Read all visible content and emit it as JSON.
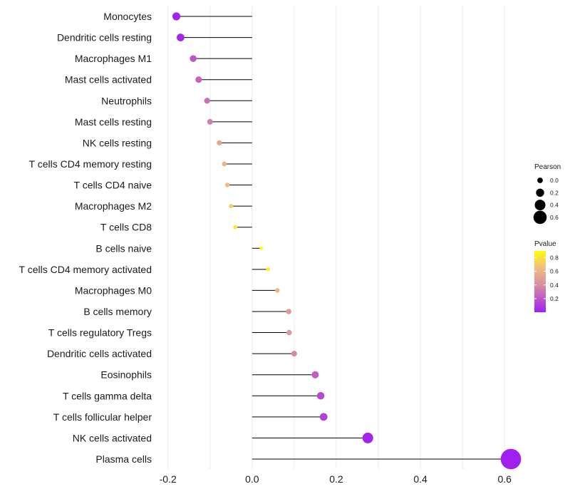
{
  "chart_data": {
    "type": "lollipop",
    "title": "",
    "xlabel": "",
    "ylabel": "",
    "xlim": [
      -0.23,
      0.62
    ],
    "x_ticks": [
      -0.2,
      0.0,
      0.2,
      0.4,
      0.6
    ],
    "x_tick_labels": [
      "-0.2",
      "0.0",
      "0.2",
      "0.4",
      "0.6"
    ],
    "grid": true,
    "categories": [
      "Monocytes",
      "Dendritic cells resting",
      "Macrophages M1",
      "Mast cells activated",
      "Neutrophils",
      "Mast cells resting",
      "NK cells resting",
      "T cells CD4 memory resting",
      "T cells CD4 naive",
      "Macrophages M2",
      "T cells CD8",
      "B cells naive",
      "T cells CD4 memory activated",
      "Macrophages M0",
      "B cells memory",
      "T cells regulatory  Tregs ",
      "Dendritic cells activated",
      "Eosinophils",
      "T cells gamma delta",
      "T cells follicular helper",
      "NK cells activated",
      "Plasma cells"
    ],
    "pearson": [
      -0.18,
      -0.17,
      -0.14,
      -0.127,
      -0.107,
      -0.1,
      -0.078,
      -0.066,
      -0.059,
      -0.05,
      -0.04,
      0.022,
      0.038,
      0.06,
      0.087,
      0.088,
      0.1,
      0.15,
      0.163,
      0.17,
      0.275,
      0.615
    ],
    "pvalue": [
      0.02,
      0.03,
      0.2,
      0.24,
      0.3,
      0.35,
      0.52,
      0.6,
      0.65,
      0.72,
      0.82,
      0.93,
      0.85,
      0.6,
      0.45,
      0.45,
      0.38,
      0.22,
      0.15,
      0.12,
      0.02,
      0.001
    ],
    "size_legend": {
      "title": "Pearson",
      "values": [
        0.0,
        0.2,
        0.4,
        0.6
      ],
      "labels": [
        "0.0",
        "0.2",
        "0.4",
        "0.6"
      ]
    },
    "color_legend": {
      "title": "Pvalue",
      "range": [
        0.0,
        0.9
      ],
      "ticks": [
        0.2,
        0.4,
        0.6,
        0.8
      ],
      "labels": [
        "0.2",
        "0.4",
        "0.6",
        "0.8"
      ],
      "low_color": "#a020f0",
      "mid_color": "#d98fa0",
      "high_color": "#ffff00"
    }
  }
}
